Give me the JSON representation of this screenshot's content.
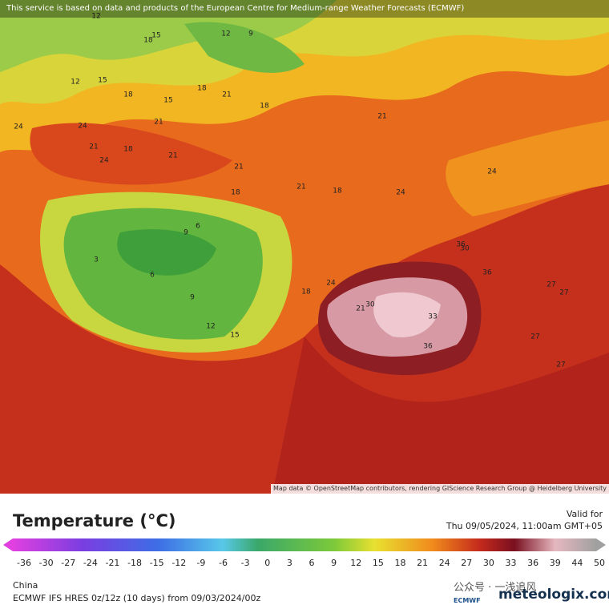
{
  "header": {
    "disclaimer": "This service is based on data and products of the European Centre for Medium-range Weather Forecasts (ECMWF)"
  },
  "map": {
    "attribution": "Map data © OpenStreetMap contributors, rendering GIScience Research Group @ Heidelberg University",
    "contour_labels": [
      12,
      15,
      18,
      12,
      9,
      12,
      15,
      18,
      21,
      15,
      18,
      21,
      18,
      24,
      21,
      18,
      21,
      24,
      21,
      18,
      21,
      24,
      18,
      21,
      9,
      6,
      3,
      6,
      9,
      12,
      15,
      18,
      24,
      21,
      30,
      33,
      36,
      36,
      36,
      27,
      27,
      24,
      27,
      30,
      24,
      27
    ]
  },
  "legend": {
    "title": "Temperature (°C)",
    "valid_label": "Valid for",
    "valid_time": "Thu 09/05/2024, 11:00am GMT+05",
    "ticks": [
      -36,
      -30,
      -27,
      -24,
      -21,
      -18,
      -15,
      -12,
      -9,
      -6,
      -3,
      0,
      3,
      6,
      9,
      12,
      15,
      18,
      21,
      24,
      27,
      30,
      33,
      36,
      39,
      44,
      50
    ]
  },
  "footer": {
    "region": "China",
    "model": "ECMWF IFS HRES 0z/12z (10 days) from 09/03/2024/00z",
    "watermark": "公众号 · 一浅追风",
    "ecmwf": "ECMWF",
    "logo": "meteologix.com"
  }
}
